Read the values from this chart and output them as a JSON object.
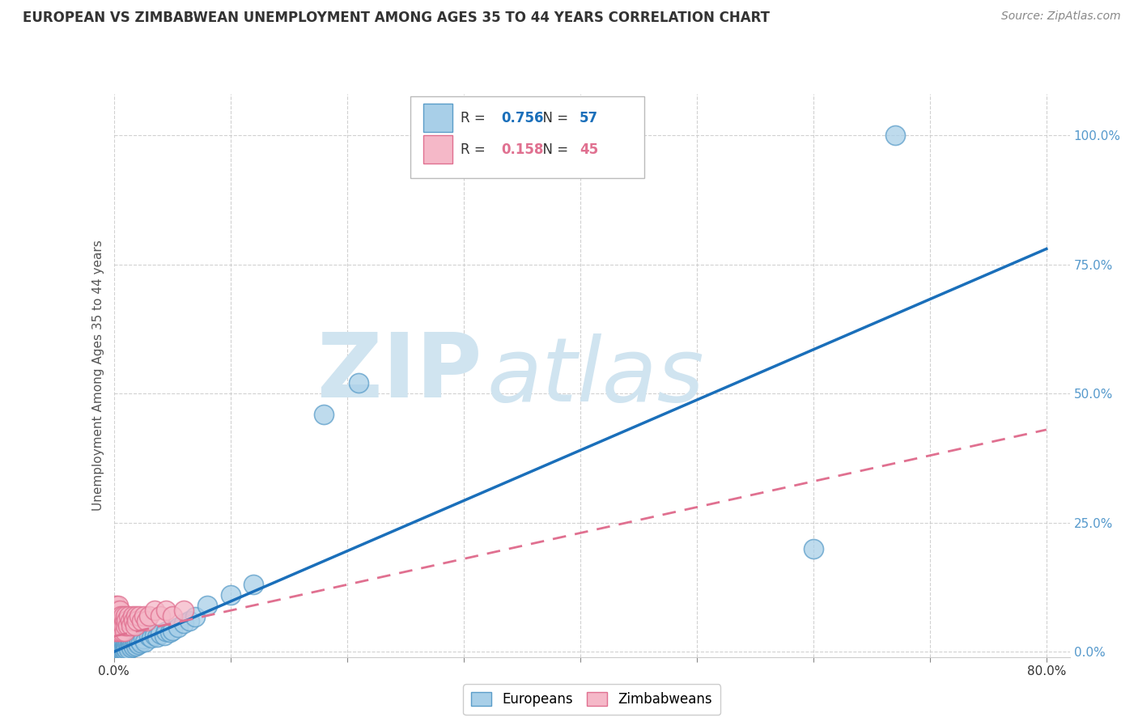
{
  "title": "EUROPEAN VS ZIMBABWEAN UNEMPLOYMENT AMONG AGES 35 TO 44 YEARS CORRELATION CHART",
  "source": "Source: ZipAtlas.com",
  "ylabel": "Unemployment Among Ages 35 to 44 years",
  "xlim": [
    0.0,
    0.82
  ],
  "ylim": [
    -0.01,
    1.08
  ],
  "xtick_positions": [
    0.0,
    0.1,
    0.2,
    0.3,
    0.4,
    0.5,
    0.6,
    0.7,
    0.8
  ],
  "xticklabels_show": {
    "0": "0.0%",
    "8": "80.0%"
  },
  "ytick_positions": [
    0.0,
    0.25,
    0.5,
    0.75,
    1.0
  ],
  "ytick_labels": [
    "0.0%",
    "25.0%",
    "50.0%",
    "75.0%",
    "100.0%"
  ],
  "european_R": 0.756,
  "european_N": 57,
  "zimbabwean_R": 0.158,
  "zimbabwean_N": 45,
  "european_color": "#a8cfe8",
  "european_edge": "#5b9dc9",
  "zimbabwean_color": "#f5b8c8",
  "zimbabwean_edge": "#e07090",
  "line_blue": "#1a6fba",
  "line_pink": "#e07090",
  "watermark_zip": "ZIP",
  "watermark_atlas": "atlas",
  "watermark_color": "#d0e4f0",
  "background": "#ffffff",
  "eu_line_x0": 0.0,
  "eu_line_y0": 0.0,
  "eu_line_x1": 0.8,
  "eu_line_y1": 0.78,
  "zw_line_x0": 0.0,
  "zw_line_y0": 0.03,
  "zw_line_x1": 0.8,
  "zw_line_y1": 0.43,
  "european_x": [
    0.001,
    0.002,
    0.002,
    0.003,
    0.003,
    0.004,
    0.004,
    0.005,
    0.005,
    0.006,
    0.006,
    0.007,
    0.007,
    0.008,
    0.008,
    0.009,
    0.009,
    0.01,
    0.01,
    0.011,
    0.011,
    0.012,
    0.013,
    0.013,
    0.014,
    0.015,
    0.015,
    0.016,
    0.017,
    0.018,
    0.019,
    0.02,
    0.021,
    0.022,
    0.023,
    0.025,
    0.027,
    0.03,
    0.032,
    0.035,
    0.037,
    0.04,
    0.043,
    0.045,
    0.048,
    0.05,
    0.055,
    0.06,
    0.065,
    0.07,
    0.08,
    0.1,
    0.12,
    0.18,
    0.21,
    0.6,
    0.67
  ],
  "european_y": [
    0.005,
    0.008,
    0.003,
    0.01,
    0.005,
    0.007,
    0.003,
    0.009,
    0.004,
    0.011,
    0.006,
    0.008,
    0.004,
    0.012,
    0.005,
    0.01,
    0.003,
    0.014,
    0.007,
    0.012,
    0.005,
    0.015,
    0.01,
    0.006,
    0.013,
    0.018,
    0.008,
    0.015,
    0.01,
    0.018,
    0.012,
    0.02,
    0.015,
    0.022,
    0.017,
    0.025,
    0.02,
    0.03,
    0.027,
    0.032,
    0.028,
    0.035,
    0.032,
    0.04,
    0.038,
    0.042,
    0.048,
    0.055,
    0.06,
    0.068,
    0.09,
    0.11,
    0.13,
    0.46,
    0.52,
    0.2,
    1.0
  ],
  "zimbabwean_x": [
    0.001,
    0.001,
    0.001,
    0.002,
    0.002,
    0.002,
    0.003,
    0.003,
    0.003,
    0.004,
    0.004,
    0.004,
    0.005,
    0.005,
    0.005,
    0.006,
    0.006,
    0.007,
    0.007,
    0.008,
    0.008,
    0.009,
    0.009,
    0.01,
    0.01,
    0.011,
    0.012,
    0.013,
    0.014,
    0.015,
    0.016,
    0.017,
    0.018,
    0.019,
    0.02,
    0.022,
    0.024,
    0.026,
    0.028,
    0.03,
    0.035,
    0.04,
    0.045,
    0.05,
    0.06
  ],
  "zimbabwean_y": [
    0.04,
    0.06,
    0.08,
    0.05,
    0.07,
    0.09,
    0.04,
    0.06,
    0.08,
    0.05,
    0.07,
    0.09,
    0.04,
    0.06,
    0.08,
    0.05,
    0.07,
    0.04,
    0.06,
    0.05,
    0.07,
    0.04,
    0.06,
    0.05,
    0.07,
    0.06,
    0.05,
    0.07,
    0.06,
    0.05,
    0.07,
    0.06,
    0.05,
    0.07,
    0.06,
    0.07,
    0.06,
    0.07,
    0.06,
    0.07,
    0.08,
    0.07,
    0.08,
    0.07,
    0.08
  ]
}
